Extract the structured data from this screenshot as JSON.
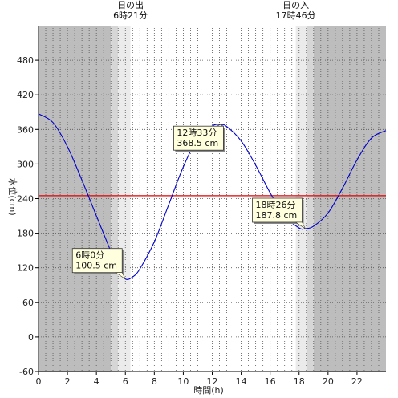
{
  "chart_data": {
    "type": "line",
    "xlabel": "時間(h)",
    "ylabel": "水位(cm)",
    "xlim": [
      0,
      24
    ],
    "ylim": [
      -60,
      540
    ],
    "x_ticks": [
      0,
      2,
      4,
      6,
      8,
      10,
      12,
      14,
      16,
      18,
      20,
      22
    ],
    "x_tick_labels": [
      "0",
      "2",
      "4",
      "6",
      "8",
      "10",
      "12",
      "14",
      "16",
      "18",
      "20",
      "22"
    ],
    "y_ticks": [
      -60,
      0,
      60,
      120,
      180,
      240,
      300,
      360,
      420,
      480
    ],
    "y_tick_labels": [
      "-60",
      "0",
      "60",
      "120",
      "180",
      "240",
      "300",
      "360",
      "420",
      "480"
    ],
    "grid_vertical_every_h": 0.5,
    "reference_line": {
      "value": 245,
      "color": "#e00000"
    },
    "series": [
      {
        "color": "#0000cc",
        "x": [
          0,
          1,
          2,
          3,
          4,
          5,
          5.5,
          6,
          6.5,
          7,
          8,
          9,
          10,
          11,
          12,
          12.55,
          13,
          14,
          15,
          16,
          17,
          18,
          18.43,
          19,
          20,
          21,
          22,
          23,
          24
        ],
        "y": [
          387,
          372,
          330,
          272,
          210,
          148,
          118,
          100.5,
          104,
          118,
          165,
          230,
          295,
          345,
          366,
          368.5,
          365,
          340,
          298,
          250,
          210,
          189,
          187.8,
          192,
          215,
          258,
          307,
          345,
          358
        ]
      }
    ],
    "night_shading": [
      {
        "from": 0,
        "to": 5.0,
        "shade": "dark"
      },
      {
        "from": 5.0,
        "to": 5.5,
        "shade": "mid"
      },
      {
        "from": 5.5,
        "to": 6.35,
        "shade": "light"
      },
      {
        "from": 17.77,
        "to": 18.5,
        "shade": "light"
      },
      {
        "from": 18.5,
        "to": 19.0,
        "shade": "mid"
      },
      {
        "from": 19.0,
        "to": 24,
        "shade": "dark"
      }
    ],
    "shade_colors": {
      "dark": "#bdbdbd",
      "mid": "#d6d6d6",
      "light": "#ebebeb"
    },
    "sun_events": [
      {
        "label": "日の出",
        "time": "6時21分",
        "hour": 6.35
      },
      {
        "label": "日の入",
        "time": "17時46分",
        "hour": 17.77
      }
    ],
    "annotations": [
      {
        "line1": "6時0分",
        "line2": "100.5 cm",
        "x": 6.0,
        "y": 100.5,
        "anchor": "upper-left"
      },
      {
        "line1": "12時33分",
        "line2": "368.5 cm",
        "x": 12.55,
        "y": 368.5,
        "anchor": "lower-left"
      },
      {
        "line1": "18時26分",
        "line2": "187.8 cm",
        "x": 18.43,
        "y": 187.8,
        "anchor": "upper-left"
      }
    ],
    "grid": true,
    "legend": "none"
  }
}
